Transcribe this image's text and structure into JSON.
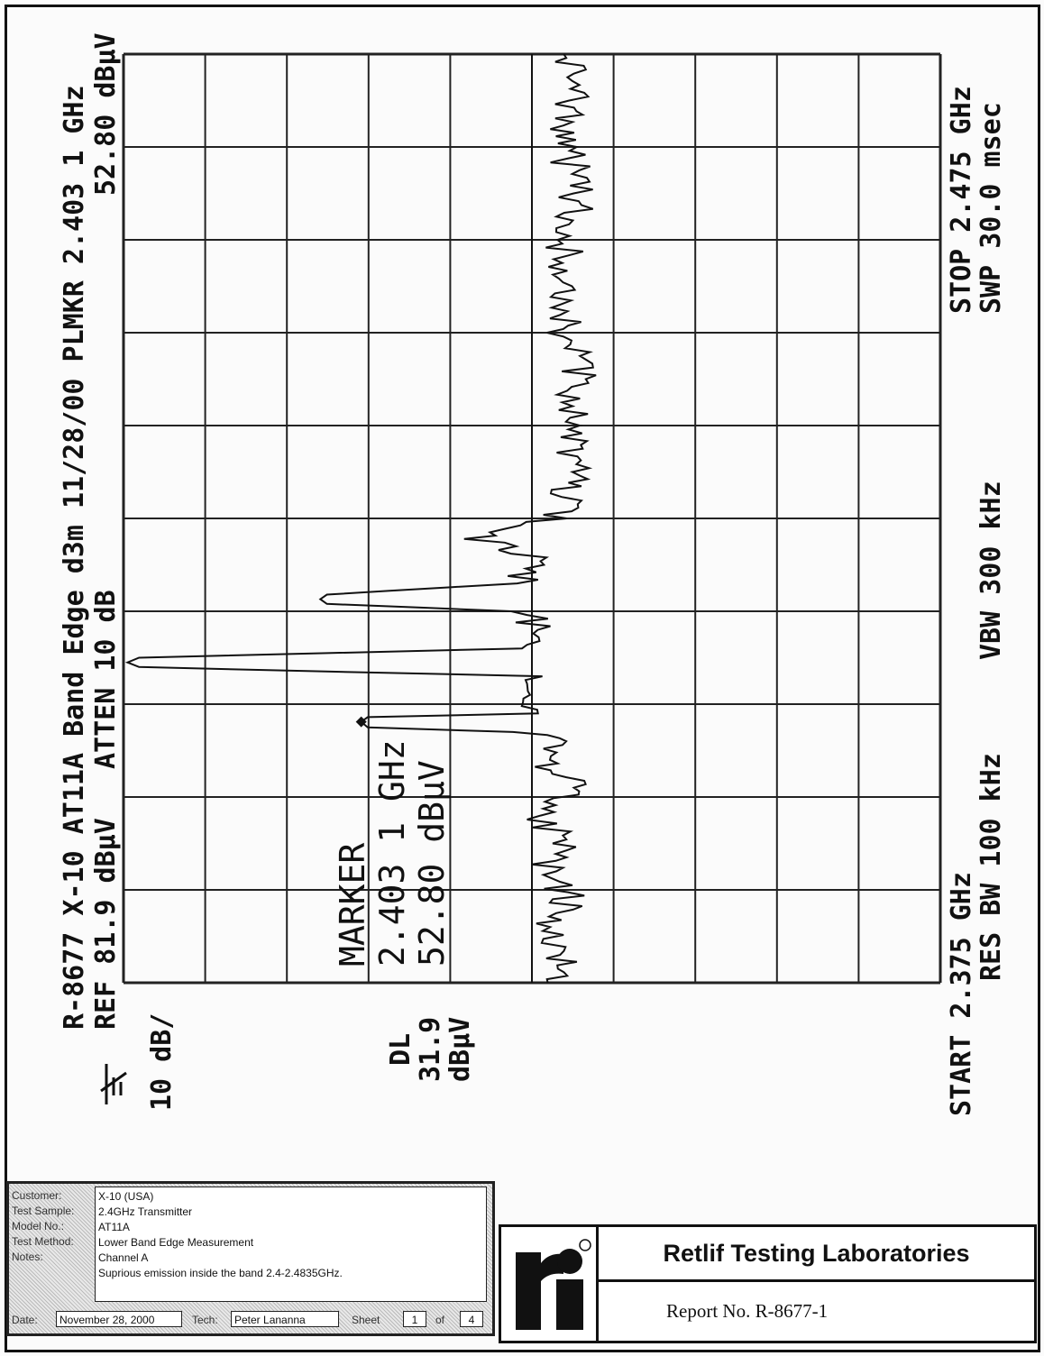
{
  "header": {
    "line1": "R-8677 X-10 AT11A Band Edge d3m 11/28/00 PLMKR 2.403 1 GHz",
    "ref": "REF 81.9 dBµV   ATTEN 10 dB",
    "marker_level": "52.80 dBµV",
    "scale": "10 dB/",
    "dl_label": "DL",
    "dl_value": "31.9",
    "dl_unit": "dBµV",
    "logo": "hp"
  },
  "marker": {
    "title": "MARKER",
    "freq": "2.403 1 GHz",
    "level": "52.80 dBµV"
  },
  "footer_right": {
    "stop": "STOP 2.475 GHz",
    "swp": "SWP 30.0 msec",
    "vbw": "VBW 300 kHz",
    "rbw": "RES BW 100 kHz",
    "start": "START 2.375 GHz"
  },
  "chart_data": {
    "type": "line",
    "xlabel": "",
    "ylabel": "",
    "x_unit": "GHz",
    "y_unit": "dBµV",
    "xlim": [
      2.375,
      2.475
    ],
    "ylim": [
      -18.1,
      81.9
    ],
    "y_per_div": 10,
    "grid": true,
    "display_line": 31.9,
    "marker": {
      "x": 2.4031,
      "y": 52.8
    },
    "series": [
      {
        "x": [
          2.375,
          2.378,
          2.381,
          2.384,
          2.387,
          2.39,
          2.393,
          2.396,
          2.399,
          2.401,
          2.402,
          2.4025,
          2.4031,
          2.4036,
          2.404,
          2.406,
          2.408,
          2.409,
          2.4095,
          2.41,
          2.411,
          2.413,
          2.415,
          2.4158,
          2.4163,
          2.4168,
          2.418,
          2.42,
          2.422,
          2.4228,
          2.4235,
          2.425,
          2.43,
          2.435,
          2.44,
          2.445,
          2.45,
          2.455,
          2.46,
          2.465,
          2.47,
          2.475
        ],
        "y": [
          30,
          28,
          31,
          27,
          30,
          28,
          31,
          27,
          30,
          28,
          33,
          52,
          52.8,
          52,
          33,
          30,
          33,
          80,
          81.4,
          80,
          34,
          30,
          34,
          57,
          57.8,
          57,
          34,
          30,
          35,
          40.2,
          36,
          29,
          27,
          28,
          26,
          28,
          27,
          28,
          26,
          28,
          27,
          28
        ]
      }
    ]
  },
  "form": {
    "labels": {
      "customer": "Customer:",
      "sample": "Test Sample:",
      "model": "Model No.:",
      "method": "Test Method:",
      "notes": "Notes:",
      "date": "Date:",
      "tech": "Tech:",
      "sheet": "Sheet",
      "of": "of"
    },
    "customer": "X-10 (USA)",
    "sample": "2.4GHz Transmitter",
    "model": "AT11A",
    "method": "Lower Band Edge Measurement",
    "notes1": "Channel A",
    "notes2": "Suprious emission inside the band 2.4-2.4835GHz.",
    "date": "November 28, 2000",
    "tech": "Peter Lananna",
    "sheet": "1",
    "sheets": "4"
  },
  "lab": {
    "logo": "ri",
    "name": "Retlif Testing Laboratories",
    "report": "Report No. R-8677-1"
  }
}
